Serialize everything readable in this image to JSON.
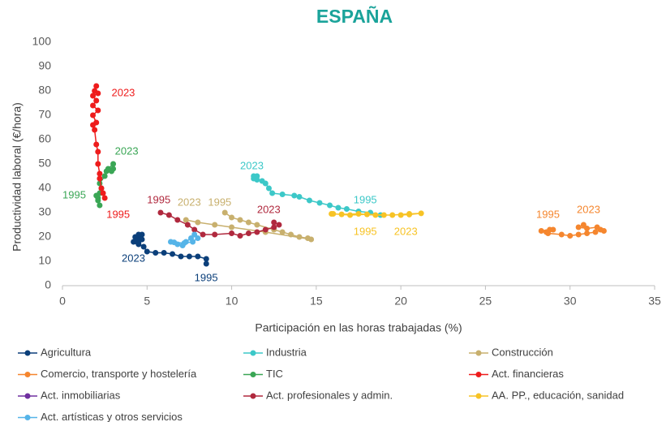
{
  "chart_data": {
    "type": "scatter",
    "title": "ESPAÑA",
    "title_color": "#1aa39a",
    "xlabel": "Participación en las horas trabajadas (%)",
    "ylabel": "Productividad laboral (€/hora)",
    "xlim": [
      0,
      35
    ],
    "ylim": [
      0,
      100
    ],
    "xticks": [
      0,
      5,
      10,
      15,
      20,
      25,
      30,
      35
    ],
    "yticks": [
      0,
      10,
      20,
      30,
      40,
      50,
      60,
      70,
      80,
      90,
      100
    ],
    "grid": false,
    "legend": "bottom",
    "series": [
      {
        "name": "Agricultura",
        "color": "#0b3f7a",
        "x": [
          8.5,
          8.5,
          8.0,
          7.5,
          7.0,
          6.5,
          6.0,
          5.5,
          5.0,
          4.8,
          4.5,
          4.2,
          4.5,
          4.7,
          4.5,
          4.3,
          4.7,
          4.5,
          4.4
        ],
        "values": [
          9,
          11,
          12,
          12,
          12,
          13,
          13.5,
          13.5,
          14,
          16,
          17,
          18,
          20,
          21,
          21,
          20,
          19,
          18,
          18
        ]
      },
      {
        "name": "Industria",
        "color": "#3cc8c8",
        "x": [
          18.8,
          18.2,
          17.5,
          16.8,
          16.3,
          15.8,
          15.2,
          14.6,
          14.0,
          13.7,
          13.0,
          12.4,
          12.2,
          12.0,
          11.8,
          11.5,
          11.3,
          11.5,
          11.3
        ],
        "values": [
          29,
          30,
          30.5,
          31.5,
          32,
          33,
          34,
          35,
          36.5,
          37,
          37.5,
          38,
          40,
          42,
          43,
          43.5,
          44,
          45,
          45
        ]
      },
      {
        "name": "Construcción",
        "color": "#c8b06e",
        "x": [
          9.6,
          10.0,
          10.5,
          11.0,
          11.5,
          12.5,
          13.0,
          13.5,
          14.0,
          14.5,
          14.7,
          12.0,
          10.0,
          9.0,
          8.0,
          7.3
        ],
        "values": [
          30,
          28,
          27,
          26,
          25,
          23,
          22,
          21,
          20,
          19.5,
          19,
          22,
          24,
          25,
          26,
          27
        ]
      },
      {
        "name": "Comercio, transporte y hostelería",
        "color": "#f5862e",
        "x": [
          28.8,
          28.3,
          28.6,
          29.0,
          28.7,
          29.5,
          30.0,
          30.5,
          31.0,
          31.5,
          31.8,
          32.0,
          31.6,
          31.0,
          30.5,
          30.8
        ],
        "values": [
          23,
          22.5,
          22,
          23,
          21.5,
          21,
          20.5,
          21,
          21.5,
          22,
          23,
          22.5,
          24,
          23.5,
          24,
          25
        ]
      },
      {
        "name": "TIC",
        "color": "#3aa655",
        "x": [
          2.0,
          2.1,
          2.2,
          2.1,
          2.2,
          2.3,
          2.2,
          2.5,
          2.6,
          2.9,
          3.0,
          2.7,
          3.0
        ],
        "values": [
          37,
          36,
          33,
          35,
          38,
          40,
          42,
          45,
          47,
          47,
          48,
          48,
          50
        ]
      },
      {
        "name": "Act. financieras",
        "color": "#ee1c1c",
        "x": [
          2.5,
          2.4,
          2.3,
          2.2,
          2.2,
          2.1,
          2.1,
          2.0,
          1.9,
          1.8,
          2.0,
          1.8,
          2.1,
          1.8,
          2.0,
          1.8,
          2.1,
          1.9,
          2.0
        ],
        "values": [
          36,
          38,
          40,
          44,
          46,
          50,
          55,
          58,
          64,
          66,
          67,
          70,
          72,
          74,
          76,
          78,
          79,
          80,
          82
        ]
      },
      {
        "name": "Act. inmobiliarias",
        "color": "#7030a0",
        "x": [],
        "values": []
      },
      {
        "name": "Act. profesionales y admin.",
        "color": "#b0293e",
        "x": [
          5.8,
          6.3,
          6.8,
          7.4,
          7.8,
          8.3,
          9.0,
          10.0,
          10.5,
          11.0,
          11.5,
          12.0,
          12.5,
          12.5,
          12.8
        ],
        "values": [
          30,
          29,
          27,
          25,
          23,
          21,
          21,
          21.5,
          20.5,
          21.5,
          22,
          23,
          24,
          26,
          25
        ]
      },
      {
        "name": "AA. PP., educación, sanidad",
        "color": "#f7c325",
        "x": [
          19.0,
          18.0,
          17.0,
          16.0,
          15.9,
          16.5,
          17.5,
          18.5,
          19.5,
          20.5,
          21.2,
          20.5,
          20.0
        ],
        "values": [
          29,
          29.3,
          29,
          29.5,
          29.5,
          29.3,
          29.5,
          29,
          29,
          29.5,
          29.7,
          29.2,
          29
        ]
      },
      {
        "name": "Act. artísticas y otros servicios",
        "color": "#55b4e8",
        "x": [
          6.4,
          6.8,
          7.1,
          7.3,
          7.6,
          7.8,
          8.0,
          7.7,
          7.2,
          6.6
        ],
        "values": [
          18,
          17,
          16.5,
          18,
          19.5,
          21,
          19.5,
          18,
          17.5,
          17.8
        ]
      }
    ],
    "annotations": [
      {
        "text": "2023",
        "x": 2.9,
        "y": 79,
        "color": "#ee1c1c"
      },
      {
        "text": "1995",
        "x": 2.6,
        "y": 29,
        "color": "#ee1c1c"
      },
      {
        "text": "2023",
        "x": 3.1,
        "y": 55,
        "color": "#3aa655"
      },
      {
        "text": "1995",
        "x": 0.0,
        "y": 37,
        "color": "#3aa655"
      },
      {
        "text": "2023",
        "x": 3.5,
        "y": 11,
        "color": "#0b3f7a"
      },
      {
        "text": "1995",
        "x": 7.8,
        "y": 3,
        "color": "#0b3f7a"
      },
      {
        "text": "1995",
        "x": 5.0,
        "y": 35,
        "color": "#b0293e"
      },
      {
        "text": "2023",
        "x": 11.5,
        "y": 31,
        "color": "#b0293e"
      },
      {
        "text": "2023",
        "x": 6.8,
        "y": 34,
        "color": "#c8b06e"
      },
      {
        "text": "1995",
        "x": 8.6,
        "y": 34,
        "color": "#c8b06e"
      },
      {
        "text": "2023",
        "x": 10.5,
        "y": 49,
        "color": "#3cc8c8"
      },
      {
        "text": "1995",
        "x": 17.2,
        "y": 35,
        "color": "#3cc8c8"
      },
      {
        "text": "1995",
        "x": 17.2,
        "y": 22,
        "color": "#f7c325"
      },
      {
        "text": "2023",
        "x": 19.6,
        "y": 22,
        "color": "#f7c325"
      },
      {
        "text": "1995",
        "x": 28.0,
        "y": 29,
        "color": "#f5862e"
      },
      {
        "text": "2023",
        "x": 30.4,
        "y": 31,
        "color": "#f5862e"
      }
    ]
  }
}
